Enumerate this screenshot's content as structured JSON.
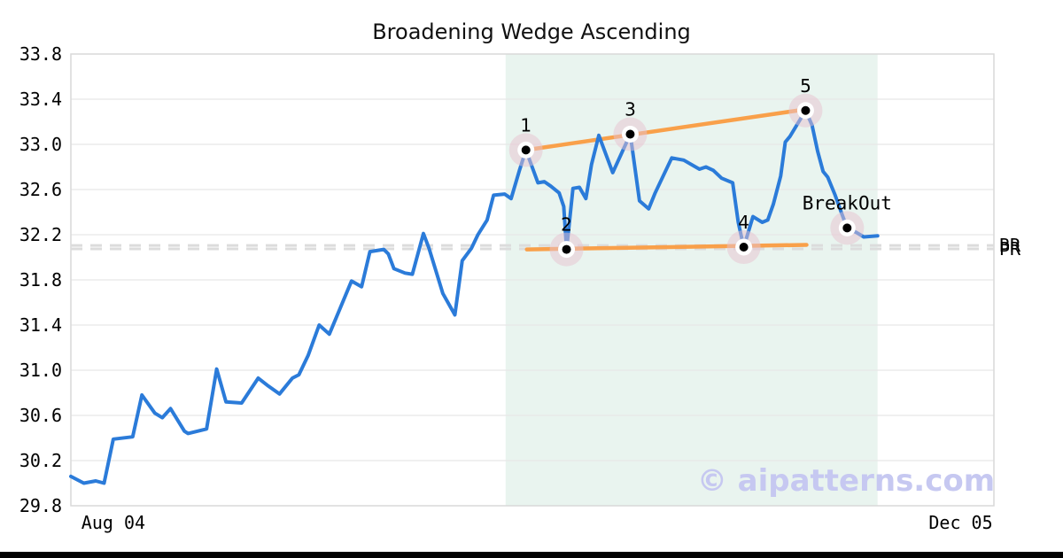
{
  "title": "Broadening Wedge Ascending",
  "watermark": "© aipatterns.com",
  "colors": {
    "price_line": "#2b7bd9",
    "trendline": "#f9a04a",
    "pattern_zone": "#e9f4ef",
    "grid": "#e7e7e7",
    "plot_border": "#d9d9d9",
    "dashed_level": "#dcdcdc",
    "marker_outer_pink": "#e7c2cf",
    "marker_ring": "#ffffff",
    "marker_dot": "#000000",
    "watermark_color": "#c6c8f1",
    "text": "#000000",
    "bottom_bar": "#000000"
  },
  "chart_data": {
    "type": "line",
    "title": "Broadening Wedge Ascending",
    "xlabel": "",
    "ylabel": "",
    "ylim": [
      29.8,
      33.8
    ],
    "grid": "horizontal",
    "legend": "none",
    "y_ticks": [
      "33.8",
      "33.4",
      "33.0",
      "32.6",
      "32.2",
      "31.8",
      "31.4",
      "31.0",
      "30.6",
      "30.2",
      "29.8"
    ],
    "y_tick_values": [
      33.8,
      33.4,
      33.0,
      32.6,
      32.2,
      31.8,
      31.4,
      31.0,
      30.6,
      30.2,
      29.8
    ],
    "x_ticks": [
      {
        "label": "Aug 04",
        "pos": 0.046
      },
      {
        "label": "Dec 05",
        "pos": 0.964
      }
    ],
    "pattern_zone": {
      "x0": 0.471,
      "x1": 0.874
    },
    "levels": [
      {
        "label": "BR",
        "value": 32.105
      },
      {
        "label": "PR",
        "value": 32.075
      }
    ],
    "trendlines": [
      {
        "name": "upper",
        "x0": 0.493,
        "y0": 32.95,
        "x1": 0.796,
        "y1": 33.31
      },
      {
        "name": "lower",
        "x0": 0.494,
        "y0": 32.07,
        "x1": 0.797,
        "y1": 32.11
      }
    ],
    "pattern_points": [
      {
        "label": "1",
        "x": 0.493,
        "value": 32.95
      },
      {
        "label": "2",
        "x": 0.537,
        "value": 32.07
      },
      {
        "label": "3",
        "x": 0.606,
        "value": 33.09
      },
      {
        "label": "4",
        "x": 0.729,
        "value": 32.09
      },
      {
        "label": "5",
        "x": 0.796,
        "value": 33.3
      },
      {
        "label": "BreakOut",
        "x": 0.841,
        "value": 32.26
      }
    ],
    "series": [
      {
        "name": "price",
        "points": [
          [
            0.0,
            30.06
          ],
          [
            0.014,
            30.0
          ],
          [
            0.027,
            30.02
          ],
          [
            0.036,
            30.0
          ],
          [
            0.046,
            30.39
          ],
          [
            0.067,
            30.41
          ],
          [
            0.077,
            30.78
          ],
          [
            0.091,
            30.62
          ],
          [
            0.099,
            30.58
          ],
          [
            0.108,
            30.66
          ],
          [
            0.123,
            30.46
          ],
          [
            0.127,
            30.44
          ],
          [
            0.147,
            30.48
          ],
          [
            0.158,
            31.01
          ],
          [
            0.168,
            30.72
          ],
          [
            0.185,
            30.71
          ],
          [
            0.203,
            30.93
          ],
          [
            0.214,
            30.86
          ],
          [
            0.226,
            30.79
          ],
          [
            0.24,
            30.93
          ],
          [
            0.247,
            30.96
          ],
          [
            0.257,
            31.13
          ],
          [
            0.269,
            31.4
          ],
          [
            0.28,
            31.32
          ],
          [
            0.304,
            31.79
          ],
          [
            0.315,
            31.74
          ],
          [
            0.324,
            32.05
          ],
          [
            0.339,
            32.07
          ],
          [
            0.344,
            32.03
          ],
          [
            0.35,
            31.9
          ],
          [
            0.362,
            31.86
          ],
          [
            0.37,
            31.85
          ],
          [
            0.382,
            32.21
          ],
          [
            0.388,
            32.08
          ],
          [
            0.403,
            31.68
          ],
          [
            0.416,
            31.49
          ],
          [
            0.424,
            31.97
          ],
          [
            0.434,
            32.08
          ],
          [
            0.441,
            32.2
          ],
          [
            0.451,
            32.33
          ],
          [
            0.458,
            32.55
          ],
          [
            0.47,
            32.56
          ],
          [
            0.477,
            32.52
          ],
          [
            0.486,
            32.77
          ],
          [
            0.493,
            32.95
          ],
          [
            0.506,
            32.66
          ],
          [
            0.513,
            32.67
          ],
          [
            0.52,
            32.63
          ],
          [
            0.529,
            32.57
          ],
          [
            0.534,
            32.45
          ],
          [
            0.537,
            32.07
          ],
          [
            0.544,
            32.61
          ],
          [
            0.551,
            32.62
          ],
          [
            0.558,
            32.52
          ],
          [
            0.564,
            32.82
          ],
          [
            0.572,
            33.08
          ],
          [
            0.587,
            32.75
          ],
          [
            0.606,
            33.09
          ],
          [
            0.616,
            32.5
          ],
          [
            0.626,
            32.43
          ],
          [
            0.633,
            32.57
          ],
          [
            0.651,
            32.88
          ],
          [
            0.664,
            32.86
          ],
          [
            0.681,
            32.78
          ],
          [
            0.688,
            32.8
          ],
          [
            0.696,
            32.77
          ],
          [
            0.705,
            32.7
          ],
          [
            0.717,
            32.66
          ],
          [
            0.723,
            32.31
          ],
          [
            0.729,
            32.09
          ],
          [
            0.739,
            32.36
          ],
          [
            0.749,
            32.31
          ],
          [
            0.755,
            32.33
          ],
          [
            0.761,
            32.47
          ],
          [
            0.769,
            32.72
          ],
          [
            0.774,
            33.02
          ],
          [
            0.779,
            33.07
          ],
          [
            0.796,
            33.3
          ],
          [
            0.803,
            33.17
          ],
          [
            0.809,
            32.94
          ],
          [
            0.815,
            32.76
          ],
          [
            0.82,
            32.71
          ],
          [
            0.828,
            32.55
          ],
          [
            0.835,
            32.39
          ],
          [
            0.841,
            32.26
          ],
          [
            0.851,
            32.22
          ],
          [
            0.859,
            32.18
          ],
          [
            0.874,
            32.19
          ]
        ]
      }
    ]
  }
}
